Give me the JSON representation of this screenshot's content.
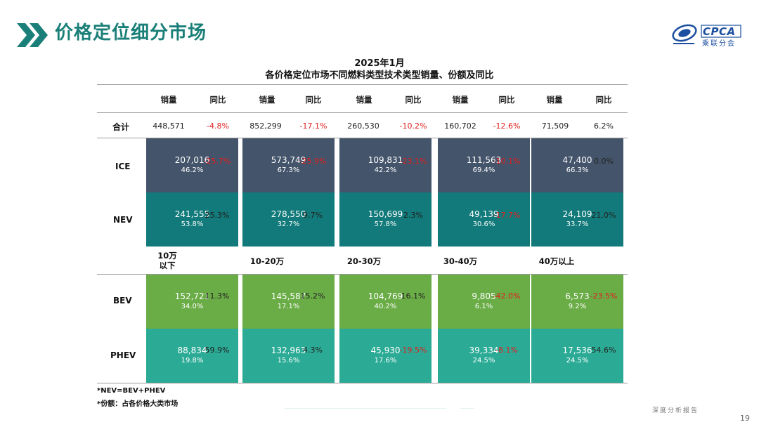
{
  "header": {
    "title": "价格定位细分市场",
    "logo": {
      "text": "CPCA",
      "subtitle": "乘联分会"
    }
  },
  "table": {
    "title_line1": "2025年1月",
    "title_line2": "各价格定位市场不同燃料类型技术类型销量、份额及同比",
    "col_headers": [
      "销量",
      "同比",
      "销量",
      "同比",
      "销量",
      "同比",
      "销量",
      "同比",
      "销量",
      "同比"
    ],
    "segments": [
      "10万\n以下",
      "10-20万",
      "20-30万",
      "30-40万",
      "40万以上"
    ],
    "rows": {
      "total": {
        "label": "合计",
        "cells": [
          {
            "sales": "448,571",
            "yoy": "-4.8%"
          },
          {
            "sales": "852,299",
            "yoy": "-17.1%"
          },
          {
            "sales": "260,530",
            "yoy": "-10.2%"
          },
          {
            "sales": "160,702",
            "yoy": "-12.6%"
          },
          {
            "sales": "71,509",
            "yoy": "6.2%"
          }
        ]
      },
      "ice": {
        "label": "ICE",
        "cells": [
          {
            "sales": "207,016",
            "share": "46.2%",
            "yoy": "-25.7%"
          },
          {
            "sales": "573,749",
            "share": "67.3%",
            "yoy": "-25.9%"
          },
          {
            "sales": "109,831",
            "share": "42.2%",
            "yoy": "-23.1%"
          },
          {
            "sales": "111,563",
            "share": "69.4%",
            "yoy": "-10.1%"
          },
          {
            "sales": "47,400",
            "share": "66.3%",
            "yoy": "0.0%"
          }
        ]
      },
      "nev": {
        "label": "NEV",
        "cells": [
          {
            "sales": "241,555",
            "share": "53.8%",
            "yoy": "25.3%"
          },
          {
            "sales": "278,550",
            "share": "32.7%",
            "yoy": "9.7%"
          },
          {
            "sales": "150,699",
            "share": "57.8%",
            "yoy": "2.3%"
          },
          {
            "sales": "49,139",
            "share": "30.6%",
            "yoy": "-17.7%"
          },
          {
            "sales": "24,109",
            "share": "33.7%",
            "yoy": "21.0%"
          }
        ]
      },
      "bev": {
        "label": "BEV",
        "cells": [
          {
            "sales": "152,721",
            "share": "34.0%",
            "yoy": "11.3%"
          },
          {
            "sales": "145,587",
            "share": "17.1%",
            "yoy": "15.2%"
          },
          {
            "sales": "104,769",
            "share": "40.2%",
            "yoy": "16.1%"
          },
          {
            "sales": "9,805",
            "share": "6.1%",
            "yoy": "-42.0%"
          },
          {
            "sales": "6,573",
            "share": "9.2%",
            "yoy": "-23.5%"
          }
        ]
      },
      "phev": {
        "label": "PHEV",
        "cells": [
          {
            "sales": "88,834",
            "share": "19.8%",
            "yoy": "59.9%"
          },
          {
            "sales": "132,963",
            "share": "15.6%",
            "yoy": "4.3%"
          },
          {
            "sales": "45,930",
            "share": "17.6%",
            "yoy": "-19.5%"
          },
          {
            "sales": "39,334",
            "share": "24.5%",
            "yoy": "-8.1%"
          },
          {
            "sales": "17,536",
            "share": "24.5%",
            "yoy": "54.6%"
          }
        ]
      }
    },
    "footnotes": [
      "*NEV=BEV+PHEV",
      "*份额：占各价格大类市场"
    ]
  },
  "footer": {
    "label": "深度分析报告",
    "page": "19"
  },
  "colors": {
    "title": "#1a7f78",
    "ice": "#44546a",
    "nev": "#127a7a",
    "bev": "#6aac46",
    "phev": "#2bab95",
    "negative": "#e0201f"
  }
}
